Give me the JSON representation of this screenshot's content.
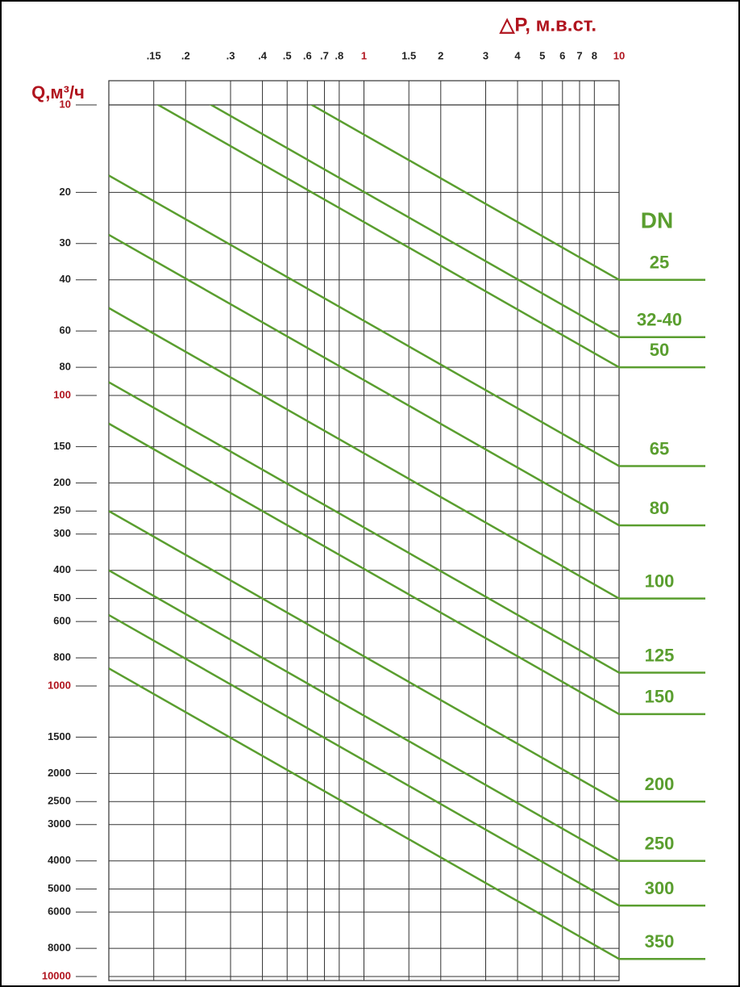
{
  "chart_data": {
    "type": "line",
    "title": "△P, м.в.ст.",
    "y_label": "Q,м³/ч",
    "legend_title": "DN",
    "x_scale": "log",
    "y_scale": "log",
    "y_inverted": true,
    "grid": true,
    "label_color": "#b0141e",
    "line_color": "#5a9e2f",
    "xlim": [
      0.1,
      10
    ],
    "xticks": [
      {
        "value": 0.15,
        "label": ".15"
      },
      {
        "value": 0.2,
        "label": ".2"
      },
      {
        "value": 0.3,
        "label": ".3"
      },
      {
        "value": 0.4,
        "label": ".4"
      },
      {
        "value": 0.5,
        "label": ".5"
      },
      {
        "value": 0.6,
        "label": ".6"
      },
      {
        "value": 0.7,
        "label": ".7"
      },
      {
        "value": 0.8,
        "label": ".8"
      },
      1,
      1.5,
      2,
      3,
      4,
      5,
      6,
      7,
      8,
      10
    ],
    "ylim": [
      10,
      10000
    ],
    "yticks": [
      10,
      20,
      30,
      40,
      60,
      80,
      100,
      150,
      200,
      250,
      300,
      400,
      500,
      600,
      800,
      1000,
      1500,
      2000,
      2500,
      3000,
      4000,
      5000,
      6000,
      8000,
      10000
    ],
    "x": [
      0.1,
      10
    ],
    "series": [
      {
        "name": "25",
        "values": [
          4,
          40
        ]
      },
      {
        "name": "32-40",
        "values": [
          6.3,
          63
        ]
      },
      {
        "name": "50",
        "values": [
          8,
          80
        ]
      },
      {
        "name": "65",
        "values": [
          17.5,
          175
        ]
      },
      {
        "name": "80",
        "values": [
          28,
          280
        ]
      },
      {
        "name": "100",
        "values": [
          50,
          500
        ]
      },
      {
        "name": "125",
        "values": [
          90,
          900
        ]
      },
      {
        "name": "150",
        "values": [
          125,
          1250
        ]
      },
      {
        "name": "200",
        "values": [
          250,
          2500
        ]
      },
      {
        "name": "250",
        "values": [
          400,
          4000
        ]
      },
      {
        "name": "300",
        "values": [
          570,
          5700
        ]
      },
      {
        "name": "350",
        "values": [
          870,
          8700
        ]
      }
    ]
  }
}
